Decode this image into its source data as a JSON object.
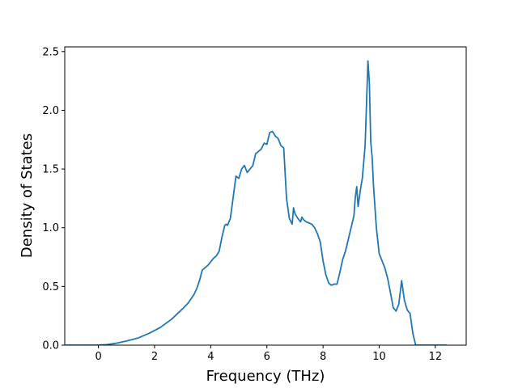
{
  "chart_data": {
    "type": "line",
    "title": "",
    "xlabel": "Frequency (THz)",
    "ylabel": "Density of States",
    "xlim": [
      -1.2,
      13.1
    ],
    "ylim": [
      0.0,
      2.54
    ],
    "xticks": [
      0,
      2,
      4,
      6,
      8,
      10,
      12
    ],
    "xtick_labels": [
      "0",
      "2",
      "4",
      "6",
      "8",
      "10",
      "12"
    ],
    "yticks": [
      0.0,
      0.5,
      1.0,
      1.5,
      2.0,
      2.5
    ],
    "ytick_labels": [
      "0.0",
      "0.5",
      "1.0",
      "1.5",
      "2.0",
      "2.5"
    ],
    "grid": false,
    "legend": "none",
    "series": [
      {
        "color": "#1f77b4",
        "x": [
          -1.17,
          -0.5,
          0.0,
          0.3,
          0.6,
          1.0,
          1.4,
          1.8,
          2.2,
          2.6,
          3.0,
          3.2,
          3.4,
          3.5,
          3.6,
          3.7,
          3.8,
          3.9,
          4.0,
          4.1,
          4.2,
          4.3,
          4.4,
          4.5,
          4.55,
          4.6,
          4.7,
          4.8,
          4.9,
          5.0,
          5.1,
          5.2,
          5.3,
          5.4,
          5.5,
          5.6,
          5.7,
          5.8,
          5.9,
          6.0,
          6.1,
          6.2,
          6.3,
          6.4,
          6.5,
          6.6,
          6.7,
          6.8,
          6.9,
          6.95,
          7.0,
          7.1,
          7.2,
          7.25,
          7.3,
          7.4,
          7.5,
          7.6,
          7.7,
          7.8,
          7.9,
          8.0,
          8.1,
          8.2,
          8.3,
          8.4,
          8.5,
          8.6,
          8.7,
          8.8,
          8.9,
          9.0,
          9.1,
          9.15,
          9.2,
          9.25,
          9.3,
          9.35,
          9.4,
          9.5,
          9.6,
          9.65,
          9.7,
          9.75,
          9.8,
          9.9,
          10.0,
          10.1,
          10.2,
          10.3,
          10.4,
          10.5,
          10.6,
          10.7,
          10.8,
          10.9,
          11.0,
          11.1,
          11.2,
          11.3,
          11.35,
          11.4,
          11.6,
          12.4
        ],
        "y": [
          0.0,
          0.0,
          0.0,
          0.005,
          0.015,
          0.035,
          0.06,
          0.1,
          0.15,
          0.22,
          0.31,
          0.36,
          0.43,
          0.48,
          0.55,
          0.64,
          0.66,
          0.68,
          0.71,
          0.74,
          0.76,
          0.8,
          0.92,
          1.02,
          1.03,
          1.02,
          1.08,
          1.26,
          1.44,
          1.42,
          1.5,
          1.53,
          1.47,
          1.5,
          1.53,
          1.63,
          1.65,
          1.67,
          1.72,
          1.71,
          1.81,
          1.82,
          1.78,
          1.76,
          1.7,
          1.68,
          1.25,
          1.08,
          1.03,
          1.17,
          1.12,
          1.08,
          1.05,
          1.09,
          1.07,
          1.05,
          1.04,
          1.03,
          1.0,
          0.95,
          0.88,
          0.72,
          0.6,
          0.53,
          0.51,
          0.52,
          0.52,
          0.62,
          0.73,
          0.8,
          0.9,
          1.0,
          1.1,
          1.26,
          1.35,
          1.18,
          1.27,
          1.35,
          1.42,
          1.7,
          2.42,
          2.24,
          1.73,
          1.6,
          1.35,
          1.0,
          0.78,
          0.72,
          0.66,
          0.57,
          0.45,
          0.32,
          0.29,
          0.35,
          0.55,
          0.38,
          0.3,
          0.27,
          0.1,
          0.0,
          0.0,
          0.0,
          0.0,
          0.0
        ]
      }
    ]
  }
}
